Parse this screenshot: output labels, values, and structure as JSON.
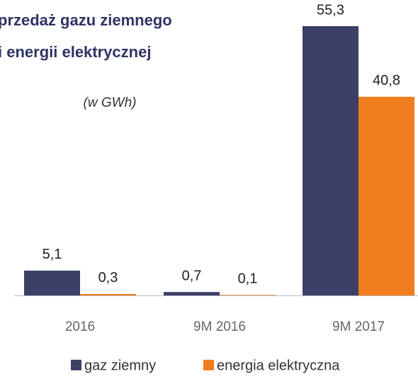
{
  "chart_data": {
    "type": "bar",
    "title": [
      "przedaż gazu ziemnego",
      "i energii elektrycznej"
    ],
    "subtitle": "(w GWh)",
    "categories": [
      "2016",
      "9M 2016",
      "9M 2017"
    ],
    "series": [
      {
        "name": "gaz ziemny",
        "color": "#3c4066",
        "values": [
          5.1,
          0.7,
          55.3
        ],
        "value_labels": [
          "5,1",
          "0,7",
          "55,3"
        ]
      },
      {
        "name": "energia elektryczna",
        "color": "#f07d1e",
        "values": [
          0.3,
          0.1,
          40.8
        ],
        "value_labels": [
          "0,3",
          "0,1",
          "40,8"
        ]
      }
    ],
    "legend": "bottom"
  }
}
